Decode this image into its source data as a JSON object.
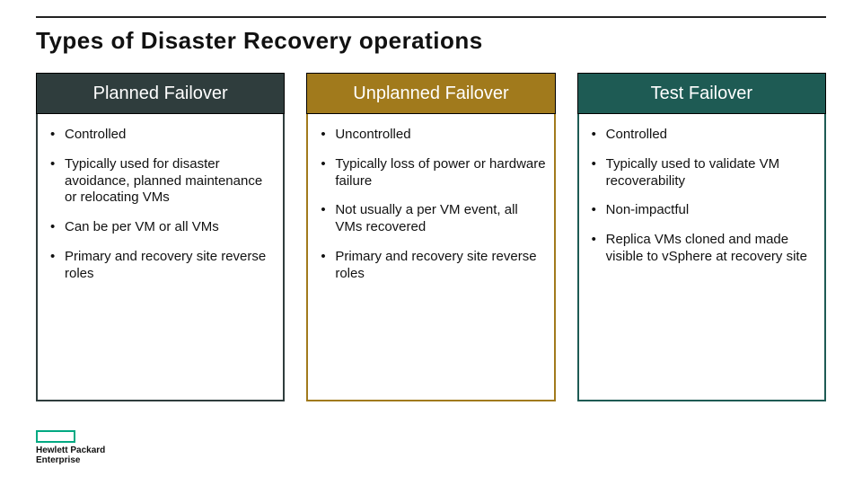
{
  "title": "Types of Disaster Recovery operations",
  "columns": [
    {
      "header": "Planned Failover",
      "header_bg": "#2f3d3d",
      "box_border": "#2f3d3d",
      "bullets": [
        "Controlled",
        "Typically used for disaster avoidance, planned maintenance or relocating VMs",
        "Can be per VM or all VMs",
        "Primary and recovery site reverse roles"
      ]
    },
    {
      "header": "Unplanned Failover",
      "header_bg": "#a17a1c",
      "box_border": "#a17a1c",
      "bullets": [
        "Uncontrolled",
        "Typically loss of power or hardware failure",
        "Not usually a per VM event, all VMs recovered",
        "Primary and recovery site reverse roles"
      ]
    },
    {
      "header": "Test Failover",
      "header_bg": "#1e5b54",
      "box_border": "#1e5b54",
      "bullets": [
        "Controlled",
        "Typically used to validate VM recoverability",
        "Non-impactful",
        "Replica VMs cloned and made visible to vSphere at recovery site"
      ]
    }
  ],
  "logo": {
    "line1": "Hewlett Packard",
    "line2": "Enterprise",
    "accent": "#01a982"
  }
}
